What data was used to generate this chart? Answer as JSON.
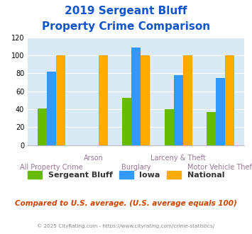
{
  "title_line1": "2019 Sergeant Bluff",
  "title_line2": "Property Crime Comparison",
  "categories": [
    "All Property Crime",
    "Arson",
    "Burglary",
    "Larceny & Theft",
    "Motor Vehicle Theft"
  ],
  "x_labels_top": [
    "",
    "Arson",
    "",
    "Larceny & Theft",
    ""
  ],
  "x_labels_bottom": [
    "All Property Crime",
    "",
    "Burglary",
    "",
    "Motor Vehicle Theft"
  ],
  "sergeant_bluff": [
    41,
    0,
    53,
    40,
    37
  ],
  "iowa": [
    82,
    0,
    109,
    78,
    75
  ],
  "national": [
    100,
    100,
    100,
    100,
    100
  ],
  "color_sergeant": "#66bb00",
  "color_iowa": "#3399ff",
  "color_national": "#ffaa00",
  "ylim": [
    0,
    120
  ],
  "yticks": [
    0,
    20,
    40,
    60,
    80,
    100,
    120
  ],
  "bg_color": "#daeaf5",
  "title_color": "#1155cc",
  "xlabel_color": "#997799",
  "legend_labels": [
    "Sergeant Bluff",
    "Iowa",
    "National"
  ],
  "footer_text": "Compared to U.S. average. (U.S. average equals 100)",
  "footer_color": "#cc4400",
  "copyright_text": "© 2025 CityRating.com - https://www.cityrating.com/crime-statistics/",
  "copyright_color": "#888888",
  "bar_width": 0.22
}
